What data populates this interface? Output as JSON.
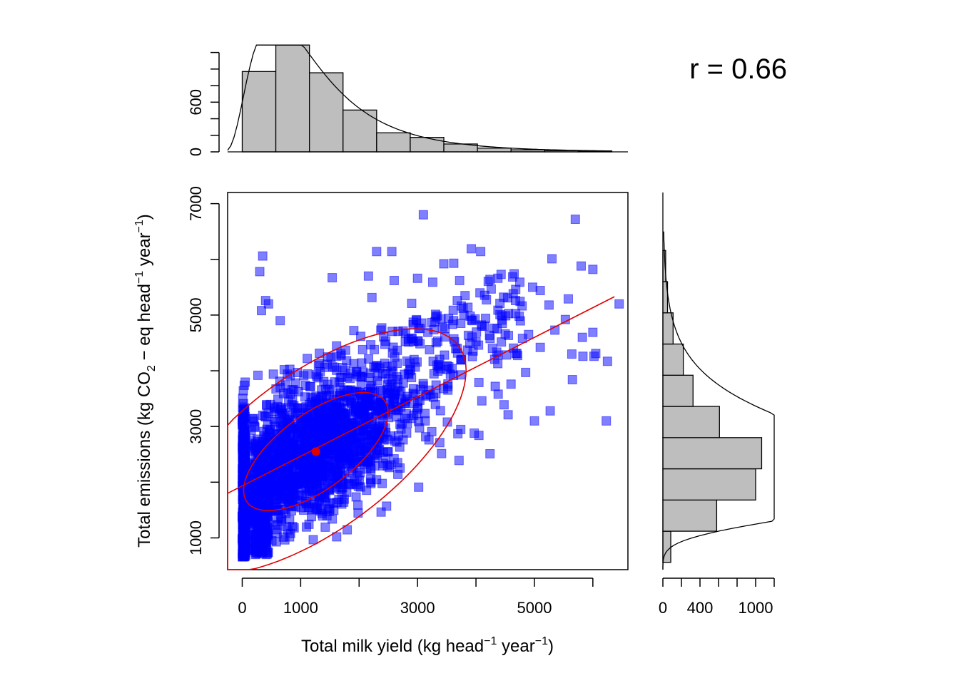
{
  "chart_data": {
    "type": "scatter",
    "annotation": "r = 0.66",
    "xlabel": {
      "main": "Total milk yield (kg head",
      "sup1": "−1",
      "mid": " year",
      "sup2": "−1",
      "end": ")"
    },
    "ylabel": {
      "main": "Total emissions (kg CO",
      "sub": "2",
      "mid": " − eq head",
      "sup1": "−1",
      "mid2": " year",
      "sup2": "−1",
      "end": ")"
    },
    "xlim": [
      -250,
      6600
    ],
    "ylim": [
      430,
      7200
    ],
    "x_ticks": [
      0,
      1000,
      2000,
      3000,
      4000,
      5000,
      6000
    ],
    "x_tick_labels": [
      "0",
      "1000",
      "3000",
      "5000"
    ],
    "x_tick_label_values": [
      0,
      1000,
      3000,
      5000
    ],
    "y_ticks": [
      1000,
      2000,
      3000,
      4000,
      5000,
      6000,
      7000
    ],
    "y_tick_labels": [
      "1000",
      "3000",
      "5000",
      "7000"
    ],
    "y_tick_label_values": [
      1000,
      3000,
      5000,
      7000
    ],
    "point_color": "#0000ff",
    "point_alpha": 0.5,
    "fit_color": "#e00000",
    "mean_point": {
      "x": 1260,
      "y": 2550
    },
    "regression_line": [
      [
        -250,
        1800
      ],
      [
        6370,
        5330
      ]
    ],
    "ellipse_50": {
      "cx": 1260,
      "cy": 2550,
      "sd_x": 1050,
      "sd_y": 900,
      "r": 0.66,
      "level": 0.5
    },
    "ellipse_95": {
      "cx": 1260,
      "cy": 2550,
      "sd_x": 1050,
      "sd_y": 900,
      "r": 0.66,
      "level": 0.95
    },
    "outlier_points": [
      [
        3100,
        6800
      ],
      [
        5700,
        6720
      ],
      [
        350,
        6060
      ],
      [
        2300,
        6140
      ],
      [
        2560,
        6140
      ],
      [
        3450,
        5920
      ],
      [
        3620,
        5930
      ],
      [
        3920,
        6190
      ],
      [
        4080,
        6140
      ],
      [
        5300,
        6010
      ],
      [
        5800,
        5880
      ],
      [
        6000,
        5820
      ],
      [
        300,
        5780
      ],
      [
        1540,
        5670
      ],
      [
        2160,
        5700
      ],
      [
        2600,
        5620
      ],
      [
        3000,
        5660
      ],
      [
        3260,
        5590
      ],
      [
        3720,
        5620
      ],
      [
        4240,
        5640
      ],
      [
        4430,
        5730
      ],
      [
        4750,
        5590
      ],
      [
        4970,
        5500
      ],
      [
        4680,
        5460
      ],
      [
        5100,
        5440
      ],
      [
        6450,
        5200
      ],
      [
        5580,
        5290
      ],
      [
        5250,
        5180
      ],
      [
        400,
        5260
      ],
      [
        330,
        5080
      ],
      [
        450,
        5200
      ],
      [
        650,
        4900
      ],
      [
        2900,
        5210
      ],
      [
        3680,
        5260
      ],
      [
        4410,
        5210
      ],
      [
        3780,
        5120
      ],
      [
        3900,
        4980
      ],
      [
        4450,
        4850
      ],
      [
        4900,
        4650
      ],
      [
        5350,
        4730
      ],
      [
        5820,
        4600
      ],
      [
        6000,
        4690
      ],
      [
        5640,
        4300
      ],
      [
        5830,
        4260
      ],
      [
        6050,
        4310
      ],
      [
        6250,
        4170
      ],
      [
        5650,
        3840
      ],
      [
        4850,
        3970
      ],
      [
        4600,
        3760
      ],
      [
        4330,
        3720
      ],
      [
        4050,
        3790
      ],
      [
        4380,
        3580
      ],
      [
        4100,
        3460
      ],
      [
        4480,
        3390
      ],
      [
        4550,
        3210
      ],
      [
        5000,
        3100
      ],
      [
        5270,
        3280
      ],
      [
        6230,
        3100
      ],
      [
        3510,
        3080
      ],
      [
        3690,
        2870
      ],
      [
        3970,
        2880
      ],
      [
        4050,
        2840
      ],
      [
        3380,
        2710
      ],
      [
        3710,
        2390
      ],
      [
        4240,
        2510
      ],
      [
        2470,
        1570
      ],
      [
        6020,
        4260
      ],
      [
        5100,
        4420
      ],
      [
        4700,
        4310
      ],
      [
        5530,
        4920
      ]
    ],
    "top_histogram": {
      "breaks": [
        0,
        575,
        1150,
        1725,
        2300,
        2875,
        3450,
        4025,
        4600,
        5175,
        5750,
        6325
      ],
      "counts": [
        970,
        1290,
        955,
        505,
        230,
        175,
        95,
        45,
        25,
        15,
        8
      ],
      "ylim": [
        0,
        1300
      ],
      "ticks": [
        0,
        200,
        400,
        600,
        800,
        1000,
        1200
      ],
      "tick_labels": [
        "0",
        "600"
      ],
      "tick_label_values": [
        0,
        600
      ]
    },
    "right_histogram": {
      "breaks": [
        560,
        1120,
        1680,
        2240,
        2800,
        3360,
        3920,
        4480,
        5040,
        5600,
        6160
      ],
      "counts": [
        85,
        580,
        1000,
        1065,
        610,
        325,
        220,
        110,
        50,
        30
      ],
      "xlim": [
        0,
        1200
      ],
      "ticks": [
        0,
        200,
        400,
        600,
        800,
        1000,
        1200
      ],
      "tick_labels": [
        "0",
        "400",
        "1000"
      ],
      "tick_label_values": [
        0,
        400,
        1000
      ]
    }
  }
}
